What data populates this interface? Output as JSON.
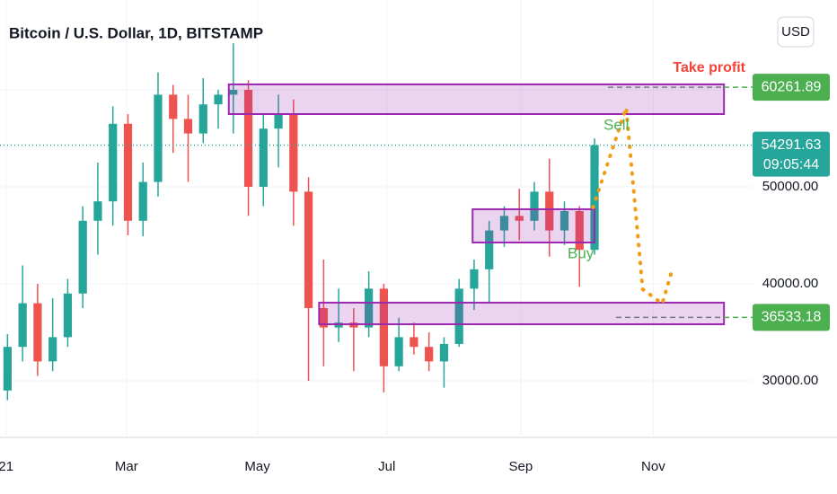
{
  "chart_data": {
    "type": "candlestick",
    "title": "Bitcoin / U.S. Dollar, 1D, BITSTAMP",
    "currency": "USD",
    "x": [
      0.5,
      1.5,
      2.5,
      3.5,
      4.5,
      5.5,
      6.5,
      7.5,
      8.5,
      9.5,
      10.5,
      11.5,
      12.5,
      13.5,
      14.5,
      15.5,
      16.5,
      17.5,
      18.5,
      19.5,
      20.5,
      21.5,
      22.5,
      23.5,
      24.5,
      25.5,
      26.5,
      27.5,
      28.5,
      29.5,
      30.5,
      31.5,
      32.5,
      33.5,
      34.5,
      35.5,
      36.5,
      37.5,
      38.5,
      39.5
    ],
    "open": [
      29000,
      33500,
      38000,
      32000,
      34500,
      39000,
      46500,
      48500,
      56500,
      46500,
      50500,
      59500,
      57000,
      55500,
      58500,
      59500,
      60000,
      50000,
      56000,
      57500,
      49500,
      37500,
      35500,
      36000,
      35500,
      39500,
      31500,
      34500,
      33500,
      32000,
      33800,
      39500,
      41500,
      45500,
      47000,
      46500,
      49500,
      45500,
      47500,
      43500
    ],
    "high": [
      34800,
      41900,
      40000,
      38500,
      40500,
      48000,
      52500,
      58300,
      57500,
      52500,
      61800,
      60500,
      59500,
      61200,
      60000,
      64800,
      61000,
      57500,
      59500,
      59000,
      51000,
      42500,
      39500,
      37500,
      41300,
      40000,
      36500,
      36000,
      35000,
      34500,
      40500,
      42500,
      46500,
      48000,
      49800,
      50500,
      52900,
      48500,
      48000,
      55000
    ],
    "low": [
      28000,
      32000,
      30500,
      31000,
      33500,
      37500,
      43000,
      46000,
      45000,
      44900,
      49000,
      53500,
      50500,
      54500,
      56000,
      55500,
      47000,
      48000,
      52000,
      46000,
      30000,
      31500,
      34000,
      31000,
      34500,
      28800,
      31000,
      32700,
      31000,
      29300,
      33500,
      37300,
      38000,
      43800,
      44500,
      45500,
      42800,
      44000,
      39700,
      43000
    ],
    "close": [
      33500,
      38000,
      32000,
      34500,
      39000,
      46500,
      48500,
      56500,
      46500,
      50500,
      59500,
      57000,
      55500,
      58500,
      59500,
      60000,
      50000,
      56000,
      57500,
      49500,
      37500,
      35500,
      36000,
      35500,
      39500,
      31500,
      34500,
      33500,
      32000,
      33800,
      39500,
      41500,
      45500,
      47000,
      46500,
      49500,
      45500,
      47500,
      43500,
      54300
    ],
    "up_color": "#26a69a",
    "down_color": "#ef5350",
    "xlim": [
      0,
      50
    ],
    "xticks": [
      {
        "value": 0.4,
        "label": "21"
      },
      {
        "value": 8.4,
        "label": "Mar"
      },
      {
        "value": 17.1,
        "label": "May"
      },
      {
        "value": 25.7,
        "label": "Jul"
      },
      {
        "value": 34.6,
        "label": "Sep"
      },
      {
        "value": 43.4,
        "label": "Nov"
      }
    ],
    "ylim": [
      24350,
      69260
    ],
    "yticks": [
      {
        "value": 30000,
        "label": "30000.00"
      },
      {
        "value": 40000,
        "label": "40000.00"
      },
      {
        "value": 50000,
        "label": "50000.00"
      },
      {
        "value": 60000,
        "label": "60000.00"
      }
    ],
    "grid": true,
    "zone_color": "#9c27b0",
    "zones": [
      {
        "x": [
          15.2,
          48.1
        ],
        "y": [
          57500,
          60560
        ]
      },
      {
        "x": [
          31.4,
          39.5
        ],
        "y": [
          44260,
          47690
        ]
      },
      {
        "x": [
          21.2,
          48.1
        ],
        "y": [
          35830,
          38060
        ]
      }
    ],
    "projection": {
      "x": [
        39.4,
        41.6,
        42.7,
        44.0,
        44.7
      ],
      "y": [
        47870,
        58150,
        39440,
        37960,
        41670
      ],
      "color": "#f39c12"
    },
    "annotations": {
      "sell": "Sell",
      "buy": "Buy",
      "take_profit": "Take profit"
    },
    "price_lines": [
      {
        "value": 60261.89,
        "color": "#4caf50"
      },
      {
        "value": 36533.18,
        "color": "#4caf50"
      }
    ],
    "last_price": {
      "value": 54291.63,
      "countdown": "09:05:44",
      "color": "#26a69a"
    }
  }
}
